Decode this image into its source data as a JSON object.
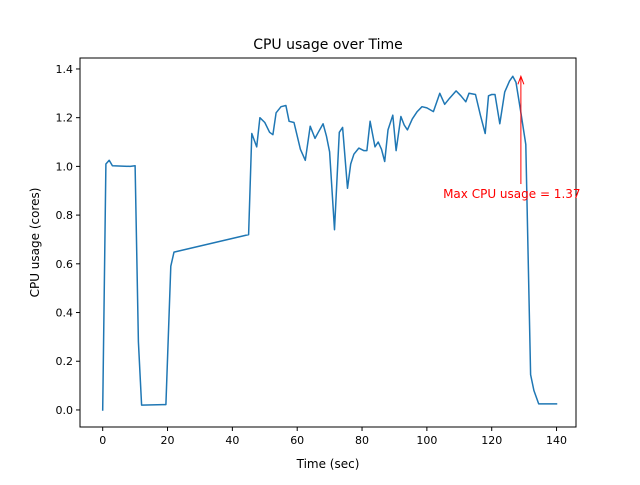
{
  "chart_data": {
    "type": "line",
    "title": "CPU usage over Time",
    "xlabel": "Time (sec)",
    "ylabel": "CPU usage (cores)",
    "xlim": [
      -7,
      146
    ],
    "ylim": [
      -0.07,
      1.445
    ],
    "xticks": [
      0,
      20,
      40,
      60,
      80,
      100,
      120,
      140
    ],
    "xtick_labels": [
      "0",
      "20",
      "40",
      "60",
      "80",
      "100",
      "120",
      "140"
    ],
    "yticks": [
      0.0,
      0.2,
      0.4,
      0.6,
      0.8,
      1.0,
      1.2,
      1.4
    ],
    "ytick_labels": [
      "0.0",
      "0.2",
      "0.4",
      "0.6",
      "0.8",
      "1.0",
      "1.2",
      "1.4"
    ],
    "grid": false,
    "series": [
      {
        "color": "#1f77b4",
        "x": [
          0,
          1,
          2,
          3,
          8.5,
          10,
          11,
          12,
          18.5,
          19.5,
          21,
          22,
          45,
          46,
          47.5,
          48.5,
          50,
          51.5,
          52.5,
          53.5,
          55,
          56.5,
          57.5,
          59,
          61,
          62.5,
          64,
          65.5,
          66.5,
          68,
          69,
          70,
          71.5,
          73,
          74,
          75.5,
          76.5,
          77.5,
          79,
          80.5,
          81.5,
          82.5,
          84,
          85,
          86,
          87,
          88,
          89.5,
          90.5,
          92,
          93,
          94,
          95.5,
          97,
          98.5,
          100,
          102,
          104,
          105.5,
          107,
          109,
          110.5,
          112,
          113,
          115,
          116.5,
          118,
          119,
          120,
          121,
          122.5,
          124,
          125.5,
          126.5,
          127.5,
          129,
          130.5,
          132,
          133,
          134.5,
          136.5,
          138,
          140
        ],
        "values": [
          0.0,
          1.01,
          1.025,
          1.003,
          1.0,
          1.003,
          0.28,
          0.02,
          0.022,
          0.022,
          0.59,
          0.648,
          0.72,
          1.135,
          1.08,
          1.2,
          1.18,
          1.14,
          1.13,
          1.22,
          1.245,
          1.25,
          1.185,
          1.18,
          1.07,
          1.025,
          1.165,
          1.115,
          1.14,
          1.175,
          1.125,
          1.06,
          0.74,
          1.14,
          1.16,
          0.91,
          1.01,
          1.05,
          1.075,
          1.065,
          1.065,
          1.185,
          1.08,
          1.1,
          1.07,
          1.02,
          1.15,
          1.21,
          1.065,
          1.205,
          1.17,
          1.15,
          1.195,
          1.225,
          1.245,
          1.24,
          1.225,
          1.3,
          1.255,
          1.28,
          1.31,
          1.29,
          1.265,
          1.3,
          1.295,
          1.21,
          1.135,
          1.29,
          1.295,
          1.295,
          1.175,
          1.305,
          1.35,
          1.37,
          1.345,
          1.22,
          1.09,
          0.145,
          0.08,
          0.025,
          0.025,
          0.025,
          0.025
        ]
      }
    ],
    "annotations": [
      {
        "text": "Max CPU usage = 1.37",
        "xy": [
          129,
          1.37
        ],
        "xytext": [
          105,
          0.87
        ],
        "color": "#ff0000"
      }
    ]
  }
}
